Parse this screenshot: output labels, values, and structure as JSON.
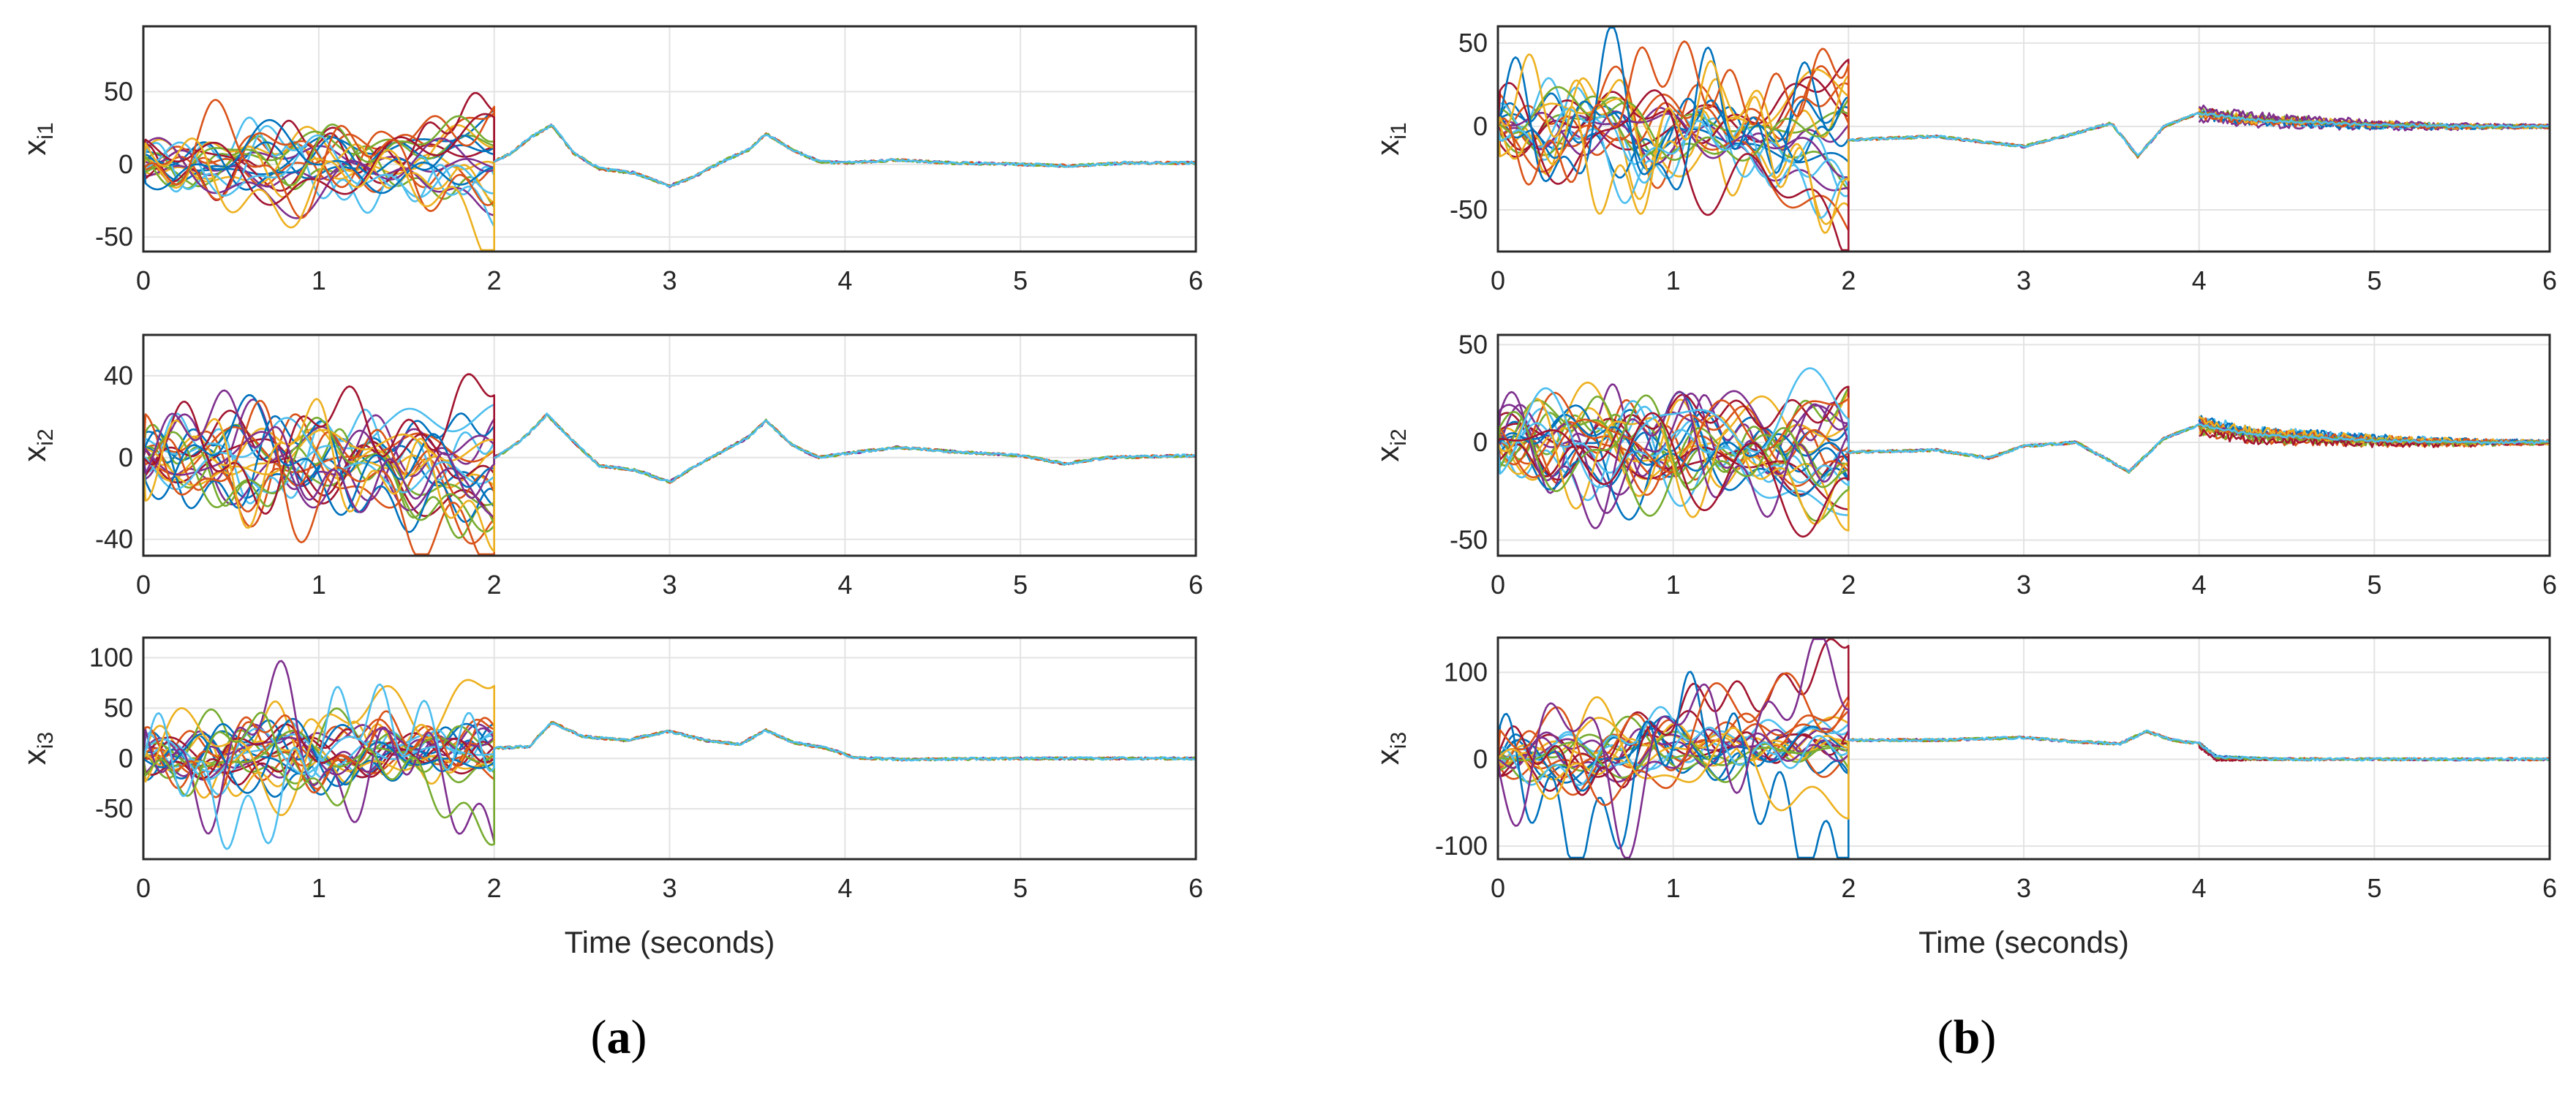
{
  "palette": [
    "#0072BD",
    "#D95319",
    "#EDB120",
    "#7E2F8E",
    "#77AC30",
    "#4DBEEE",
    "#A2142F"
  ],
  "figure_labels": [
    {
      "open": "(",
      "letter": "a",
      "close": ")"
    },
    {
      "open": "(",
      "letter": "b",
      "close": ")"
    }
  ],
  "chart_data": [
    {
      "type": "line",
      "panel": "a",
      "row": 1,
      "ylabel": {
        "base": "x",
        "sub": "i1"
      },
      "xlabel": "",
      "xlim": [
        0,
        6
      ],
      "ylim": [
        -60,
        95
      ],
      "xticks": [
        "0",
        "1",
        "2",
        "3",
        "4",
        "5",
        "6"
      ],
      "yticks": [
        {
          "v": -50,
          "t": "-50"
        },
        {
          "v": 0,
          "t": "0"
        },
        {
          "v": 50,
          "t": "50"
        }
      ],
      "consensus": [
        [
          0,
          0
        ],
        [
          2,
          2
        ],
        [
          2.1,
          8
        ],
        [
          2.2,
          18
        ],
        [
          2.33,
          27
        ],
        [
          2.45,
          8
        ],
        [
          2.6,
          -3
        ],
        [
          2.8,
          -6
        ],
        [
          3,
          -15
        ],
        [
          3.15,
          -8
        ],
        [
          3.3,
          2
        ],
        [
          3.45,
          10
        ],
        [
          3.55,
          21
        ],
        [
          3.7,
          10
        ],
        [
          3.85,
          2
        ],
        [
          4,
          1
        ],
        [
          4.3,
          3
        ],
        [
          4.6,
          1
        ],
        [
          5,
          0
        ],
        [
          5.3,
          -1
        ],
        [
          5.6,
          1
        ],
        [
          6,
          1
        ]
      ],
      "spread": [
        {
          "t0": 0,
          "t1": 2,
          "n": 20,
          "amp": 22,
          "end": 40,
          "noise": 0,
          "seed": 11
        },
        {
          "t0": 0,
          "t1": 2,
          "n": 4,
          "amp": 30,
          "end": 88,
          "noise": 0,
          "seed": 12
        }
      ]
    },
    {
      "type": "line",
      "panel": "a",
      "row": 2,
      "ylabel": {
        "base": "x",
        "sub": "i2"
      },
      "xlabel": "",
      "xlim": [
        0,
        6
      ],
      "ylim": [
        -48,
        60
      ],
      "xticks": [
        "0",
        "1",
        "2",
        "3",
        "4",
        "5",
        "6"
      ],
      "yticks": [
        {
          "v": -40,
          "t": "-40"
        },
        {
          "v": 0,
          "t": "0"
        },
        {
          "v": 40,
          "t": "40"
        }
      ],
      "consensus": [
        [
          0,
          0
        ],
        [
          2,
          0
        ],
        [
          2.1,
          5
        ],
        [
          2.2,
          12
        ],
        [
          2.3,
          21
        ],
        [
          2.45,
          8
        ],
        [
          2.6,
          -4
        ],
        [
          2.8,
          -6
        ],
        [
          3,
          -12
        ],
        [
          3.15,
          -4
        ],
        [
          3.3,
          3
        ],
        [
          3.45,
          10
        ],
        [
          3.55,
          18
        ],
        [
          3.7,
          6
        ],
        [
          3.85,
          0
        ],
        [
          4,
          2
        ],
        [
          4.3,
          5
        ],
        [
          4.6,
          3
        ],
        [
          5,
          1
        ],
        [
          5.25,
          -3
        ],
        [
          5.5,
          0
        ],
        [
          6,
          1
        ]
      ],
      "spread": [
        {
          "t0": 0,
          "t1": 2,
          "n": 22,
          "amp": 20,
          "end": 30,
          "noise": 0,
          "seed": 21
        },
        {
          "t0": 0,
          "t1": 2,
          "n": 3,
          "amp": 24,
          "end": 47,
          "noise": 0,
          "seed": 22
        }
      ]
    },
    {
      "type": "line",
      "panel": "a",
      "row": 3,
      "ylabel": {
        "base": "x",
        "sub": "i3"
      },
      "xlabel": "Time (seconds)",
      "xlim": [
        0,
        6
      ],
      "ylim": [
        -100,
        120
      ],
      "xticks": [
        "0",
        "1",
        "2",
        "3",
        "4",
        "5",
        "6"
      ],
      "yticks": [
        {
          "v": -50,
          "t": "-50"
        },
        {
          "v": 0,
          "t": "0"
        },
        {
          "v": 50,
          "t": "50"
        },
        {
          "v": 100,
          "t": "100"
        }
      ],
      "consensus": [
        [
          0,
          0
        ],
        [
          2,
          10
        ],
        [
          2.2,
          12
        ],
        [
          2.33,
          36
        ],
        [
          2.5,
          22
        ],
        [
          2.75,
          18
        ],
        [
          3,
          27
        ],
        [
          3.2,
          18
        ],
        [
          3.4,
          14
        ],
        [
          3.55,
          28
        ],
        [
          3.7,
          16
        ],
        [
          3.9,
          10
        ],
        [
          4.05,
          1
        ],
        [
          4.3,
          -1
        ],
        [
          5,
          0
        ],
        [
          6,
          0
        ]
      ],
      "spread": [
        {
          "t0": 0,
          "t1": 2,
          "n": 22,
          "amp": 30,
          "end": 25,
          "noise": 0,
          "seed": 31
        },
        {
          "t0": 0,
          "t1": 2,
          "n": 5,
          "amp": 70,
          "end": 100,
          "noise": 0,
          "seed": 32
        }
      ]
    },
    {
      "type": "line",
      "panel": "b",
      "row": 1,
      "ylabel": {
        "base": "x",
        "sub": "i1"
      },
      "xlabel": "",
      "xlim": [
        0,
        6
      ],
      "ylim": [
        -75,
        60
      ],
      "xticks": [
        "0",
        "1",
        "2",
        "3",
        "4",
        "5",
        "6"
      ],
      "yticks": [
        {
          "v": -50,
          "t": "-50"
        },
        {
          "v": 0,
          "t": "0"
        },
        {
          "v": 50,
          "t": "50"
        }
      ],
      "consensus": [
        [
          0,
          0
        ],
        [
          2,
          -8
        ],
        [
          2.5,
          -6
        ],
        [
          3,
          -12
        ],
        [
          3.3,
          -4
        ],
        [
          3.5,
          2
        ],
        [
          3.65,
          -18
        ],
        [
          3.8,
          0
        ],
        [
          4,
          8
        ],
        [
          4.3,
          4
        ],
        [
          5,
          1
        ],
        [
          5.5,
          0
        ],
        [
          6,
          0
        ]
      ],
      "spread": [
        {
          "t0": 0,
          "t1": 2,
          "n": 20,
          "amp": 25,
          "end": 45,
          "noise": 0,
          "seed": 41
        },
        {
          "t0": 0,
          "t1": 2,
          "n": 4,
          "amp": 40,
          "end": 60,
          "noise": 0,
          "seed": 42
        },
        {
          "t0": 4,
          "t1": 6,
          "n": 8,
          "amp": 3,
          "end": 4,
          "noise": 3,
          "seed": 43
        }
      ]
    },
    {
      "type": "line",
      "panel": "b",
      "row": 2,
      "ylabel": {
        "base": "x",
        "sub": "i2"
      },
      "xlabel": "",
      "xlim": [
        0,
        6
      ],
      "ylim": [
        -58,
        55
      ],
      "xticks": [
        "0",
        "1",
        "2",
        "3",
        "4",
        "5",
        "6"
      ],
      "yticks": [
        {
          "v": -50,
          "t": "-50"
        },
        {
          "v": 0,
          "t": "0"
        },
        {
          "v": 50,
          "t": "50"
        }
      ],
      "consensus": [
        [
          0,
          0
        ],
        [
          2,
          -5
        ],
        [
          2.5,
          -4
        ],
        [
          2.8,
          -8
        ],
        [
          3,
          -2
        ],
        [
          3.3,
          0
        ],
        [
          3.6,
          -15
        ],
        [
          3.8,
          2
        ],
        [
          4,
          9
        ],
        [
          4.3,
          4
        ],
        [
          5,
          1
        ],
        [
          5.5,
          0
        ],
        [
          6,
          0
        ]
      ],
      "spread": [
        {
          "t0": 0,
          "t1": 2,
          "n": 24,
          "amp": 22,
          "end": 30,
          "noise": 0,
          "seed": 51
        },
        {
          "t0": 0,
          "t1": 2,
          "n": 4,
          "amp": 30,
          "end": 40,
          "noise": 0,
          "seed": 52
        },
        {
          "t0": 4,
          "t1": 6,
          "n": 10,
          "amp": 4,
          "end": 5,
          "noise": 3,
          "seed": 53
        }
      ]
    },
    {
      "type": "line",
      "panel": "b",
      "row": 3,
      "ylabel": {
        "base": "x",
        "sub": "i3"
      },
      "xlabel": "Time (seconds)",
      "xlim": [
        0,
        6
      ],
      "ylim": [
        -115,
        140
      ],
      "xticks": [
        "0",
        "1",
        "2",
        "3",
        "4",
        "5",
        "6"
      ],
      "yticks": [
        {
          "v": -100,
          "t": "-100"
        },
        {
          "v": 0,
          "t": "0"
        },
        {
          "v": 100,
          "t": "100"
        }
      ],
      "consensus": [
        [
          0,
          0
        ],
        [
          2,
          22
        ],
        [
          2.5,
          22
        ],
        [
          3,
          25
        ],
        [
          3.3,
          20
        ],
        [
          3.55,
          18
        ],
        [
          3.7,
          32
        ],
        [
          3.85,
          22
        ],
        [
          4,
          18
        ],
        [
          4.1,
          2
        ],
        [
          4.5,
          0
        ],
        [
          5,
          0
        ],
        [
          6,
          0
        ]
      ],
      "spread": [
        {
          "t0": 0,
          "t1": 2,
          "n": 20,
          "amp": 30,
          "end": 30,
          "noise": 0,
          "seed": 61
        },
        {
          "t0": 0,
          "t1": 2,
          "n": 5,
          "amp": 90,
          "end": 130,
          "noise": 0,
          "seed": 62
        },
        {
          "t0": 4,
          "t1": 4.5,
          "n": 4,
          "amp": 6,
          "end": 8,
          "noise": 2,
          "seed": 63
        }
      ]
    }
  ]
}
